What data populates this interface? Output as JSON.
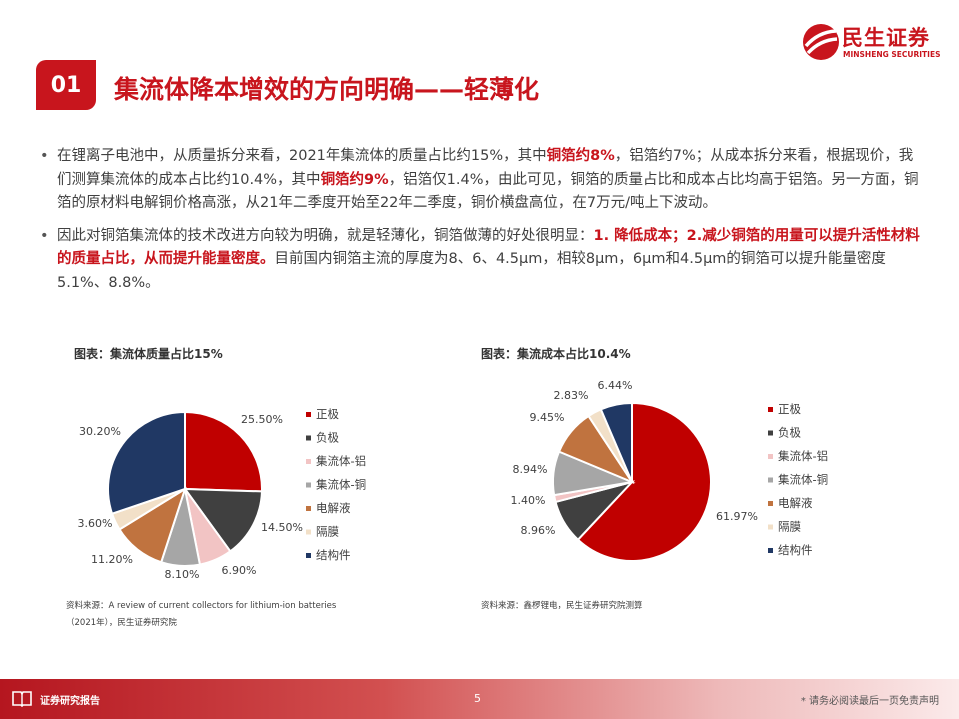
{
  "brand": {
    "name_cn": "民生证券",
    "name_en": "MINSHENG SECURITIES",
    "color": "#c8151d"
  },
  "section": {
    "number": "01",
    "title": "集流体降本增效的方向明确——轻薄化"
  },
  "bullets": [
    [
      {
        "t": "在锂离子电池中，从质量拆分来看，2021年集流体的质量占比约15%，其中"
      },
      {
        "t": "铜箔约8%",
        "b": true
      },
      {
        "t": "，铝箔约7%；从成本拆分来看，根据现价，我们测算集流体的成本占比约10.4%，其中"
      },
      {
        "t": "铜箔约9%",
        "b": true
      },
      {
        "t": "，铝箔仅1.4%，由此可见，铜箔的质量占比和成本占比均高于铝箔。另一方面，铜箔的原材料电解铜价格高涨，从21年二季度开始至22年二季度，铜价横盘高位，在7万元/吨上下波动。"
      }
    ],
    [
      {
        "t": "因此对铜箔集流体的技术改进方向较为明确，就是轻薄化，铜箔做薄的好处很明显："
      },
      {
        "t": "1. 降低成本；2.减少铜箔的用量可以提升活性材料的质量占比，从而提升能量密度。",
        "b": true
      },
      {
        "t": "目前国内铜箔主流的厚度为8、6、4.5μm，相较8μm，6μm和4.5μm的铜箔可以提升能量密度5.1%、8.8%。"
      }
    ]
  ],
  "chart_data": [
    {
      "type": "pie",
      "title": "图表：集流体质量占比15%",
      "categories": [
        "正极",
        "负极",
        "集流体-铝",
        "集流体-铜",
        "电解液",
        "隔膜",
        "结构件"
      ],
      "values": [
        25.5,
        14.5,
        6.9,
        8.1,
        11.2,
        3.6,
        30.2
      ],
      "value_labels": [
        "25.50%",
        "14.50%",
        "6.90%",
        "8.10%",
        "11.20%",
        "3.60%",
        "30.20%"
      ],
      "colors": [
        "#c00000",
        "#404040",
        "#f2c4c4",
        "#a6a6a6",
        "#c0733f",
        "#f2e0c8",
        "#203864"
      ],
      "legend": "right",
      "source": [
        "资料来源：A review of current collectors for lithium-ion batteries",
        "（2021年），民生证券研究院"
      ]
    },
    {
      "type": "pie",
      "title": "图表：集流成本占比10.4%",
      "categories": [
        "正极",
        "负极",
        "集流体-铝",
        "集流体-铜",
        "电解液",
        "隔膜",
        "结构件"
      ],
      "values": [
        61.97,
        8.96,
        1.4,
        8.94,
        9.45,
        2.83,
        6.44
      ],
      "value_labels": [
        "61.97%",
        "8.96%",
        "1.40%",
        "8.94%",
        "9.45%",
        "2.83%",
        "6.44%"
      ],
      "colors": [
        "#c00000",
        "#404040",
        "#f2c4c4",
        "#a6a6a6",
        "#c0733f",
        "#f2e0c8",
        "#203864"
      ],
      "legend": "right",
      "source": [
        "资料来源：鑫椤锂电，民生证券研究院测算"
      ]
    }
  ],
  "footer": {
    "label": "证券研究报告",
    "page": "5",
    "disclaimer": "* 请务必阅读最后一页免责声明"
  }
}
